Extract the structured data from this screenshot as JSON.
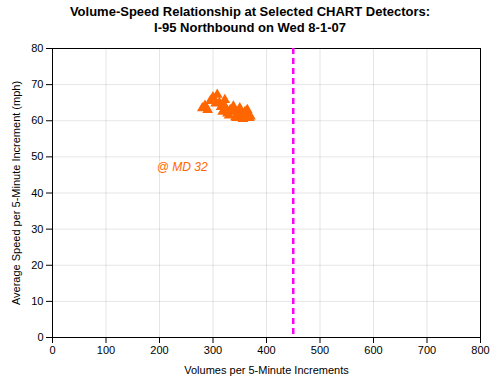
{
  "chart_data": {
    "type": "scatter",
    "title": "Volume-Speed Relationship at Selected CHART Detectors:",
    "subtitle": "I-95 Northbound on Wed 8-1-07",
    "xlabel": "Volumes per 5-Minute Increments",
    "ylabel": "Average Speed per 5-Minute Increment (mph)",
    "x": [
      280,
      285,
      290,
      295,
      300,
      305,
      308,
      312,
      315,
      318,
      320,
      322,
      325,
      327,
      330,
      332,
      335,
      338,
      340,
      342,
      344,
      346,
      348,
      350,
      352,
      354,
      356,
      358,
      360,
      362,
      364,
      366,
      368,
      370
    ],
    "values": [
      63.5,
      64.2,
      63.0,
      65.5,
      66.5,
      64.8,
      67.2,
      65.0,
      63.8,
      62.5,
      64.5,
      65.8,
      63.2,
      62.0,
      61.5,
      63.0,
      62.8,
      64.0,
      62.5,
      61.0,
      60.8,
      62.0,
      61.5,
      63.5,
      62.0,
      61.2,
      60.5,
      61.8,
      62.5,
      61.0,
      63.0,
      61.5,
      60.8,
      61.2
    ],
    "color": "#FF6600",
    "marker": "triangle",
    "vlines": [
      {
        "x": 450,
        "color": "#FF00FF",
        "line_style": "dashed"
      }
    ],
    "annotations": [
      {
        "text": "@ MD 32",
        "x": 195,
        "y": 46,
        "color": "#FF6600"
      }
    ],
    "xlim": [
      0,
      800
    ],
    "ylim": [
      0,
      80
    ],
    "xticks": [
      0,
      100,
      200,
      300,
      400,
      500,
      600,
      700,
      800
    ],
    "yticks": [
      0,
      10,
      20,
      30,
      40,
      50,
      60,
      70,
      80
    ],
    "grid": true
  }
}
